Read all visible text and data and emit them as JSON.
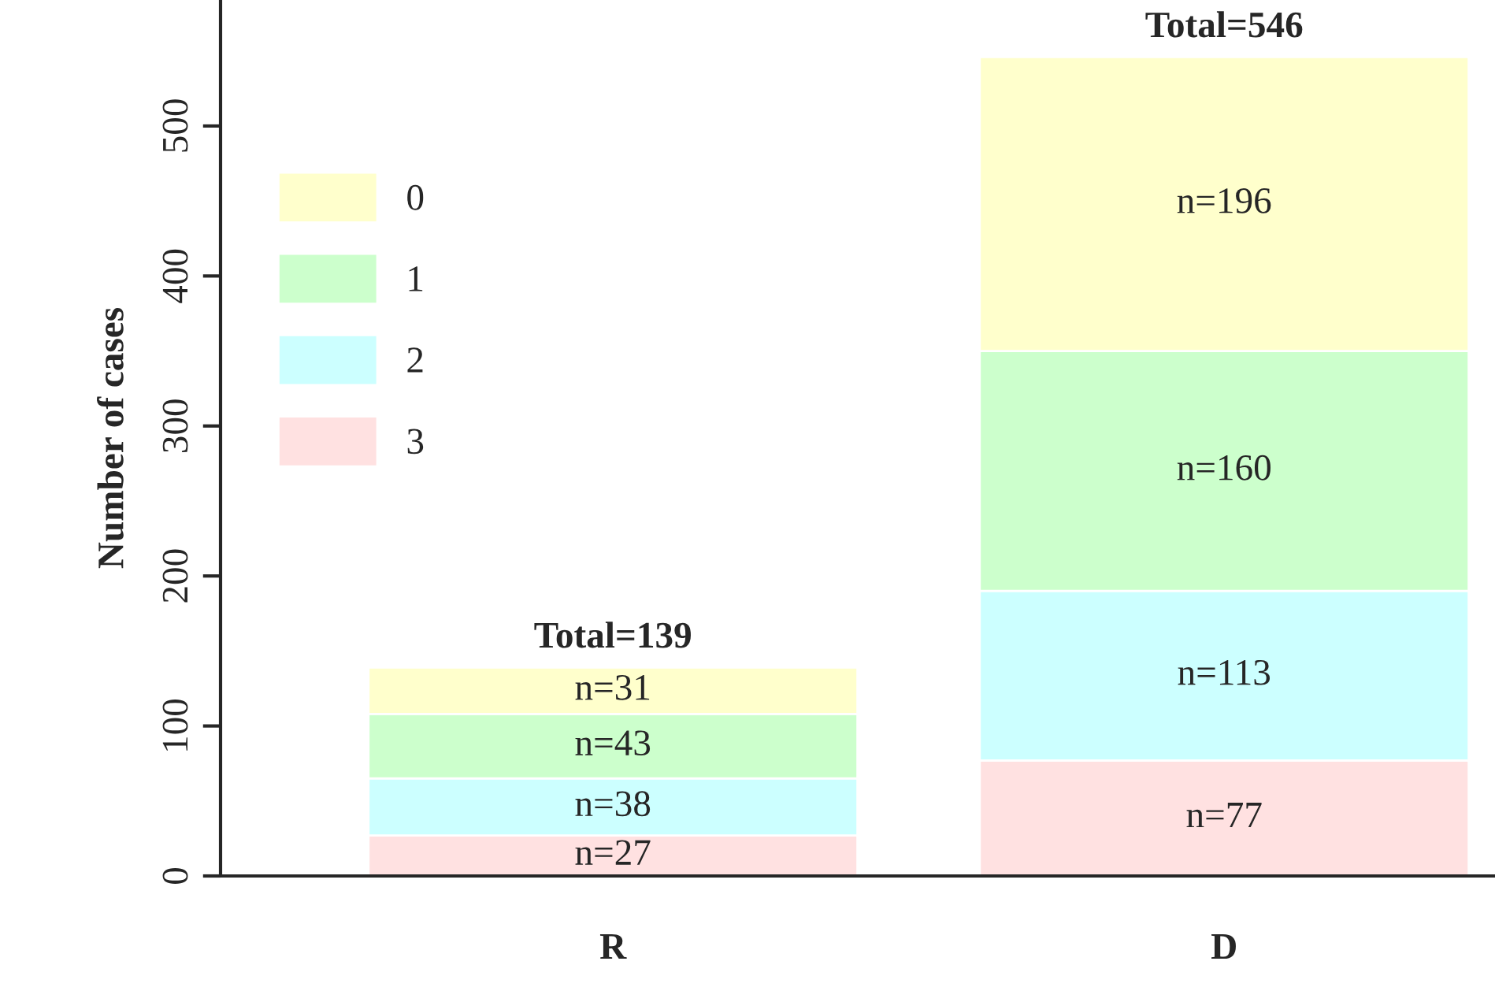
{
  "chart_data": {
    "type": "bar",
    "stacked": true,
    "ylabel": "Number of cases",
    "categories": [
      "R",
      "D"
    ],
    "series": [
      {
        "name": "3",
        "color": "#ffe1e1",
        "values": [
          27,
          77
        ],
        "value_labels": [
          "n=27",
          "n=77"
        ]
      },
      {
        "name": "2",
        "color": "#ccffff",
        "values": [
          38,
          113
        ],
        "value_labels": [
          "n=38",
          "n=113"
        ]
      },
      {
        "name": "1",
        "color": "#ccffcc",
        "values": [
          43,
          160
        ],
        "value_labels": [
          "n=43",
          "n=160"
        ]
      },
      {
        "name": "0",
        "color": "#ffffcc",
        "values": [
          31,
          196
        ],
        "value_labels": [
          "n=31",
          "n=196"
        ]
      }
    ],
    "totals": [
      "Total=139",
      "Total=546"
    ],
    "ylim": [
      0,
      584
    ],
    "yticks": [
      0,
      100,
      200,
      300,
      400,
      500
    ],
    "grid": false,
    "legend": "top left"
  }
}
